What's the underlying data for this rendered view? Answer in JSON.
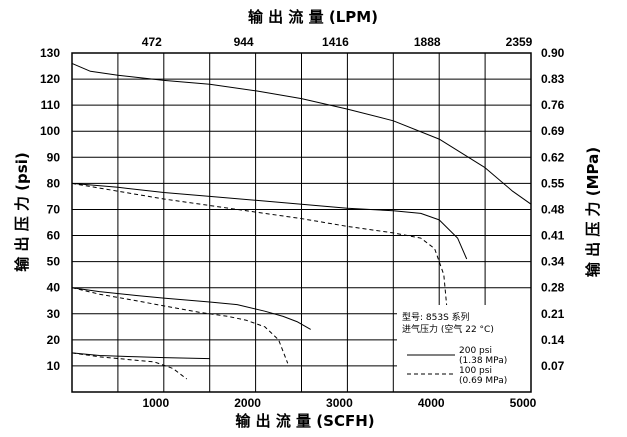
{
  "chart_data": {
    "type": "line",
    "title_top": "输 出 流 量 (LPM)",
    "xlabel": "输 出 流 量 (SCFH)",
    "ylabel_left": "输 出 压 力 (psi)",
    "ylabel_right": "输 出 压 力 (MPa)",
    "xlim": [
      0,
      5000
    ],
    "ylim": [
      0,
      130
    ],
    "grid": true,
    "x_ticks": [
      {
        "value": 1000,
        "label": "1000"
      },
      {
        "value": 2000,
        "label": "2000"
      },
      {
        "value": 3000,
        "label": "3000"
      },
      {
        "value": 4000,
        "label": "4000"
      },
      {
        "value": 5000,
        "label": "5000"
      }
    ],
    "top_ticks": [
      {
        "value": 1000,
        "label": "472"
      },
      {
        "value": 2000,
        "label": "944"
      },
      {
        "value": 3000,
        "label": "1416"
      },
      {
        "value": 4000,
        "label": "1888"
      },
      {
        "value": 5000,
        "label": "2359"
      }
    ],
    "y_ticks": [
      {
        "value": 10,
        "label": "10"
      },
      {
        "value": 20,
        "label": "20"
      },
      {
        "value": 30,
        "label": "30"
      },
      {
        "value": 40,
        "label": "40"
      },
      {
        "value": 50,
        "label": "50"
      },
      {
        "value": 60,
        "label": "60"
      },
      {
        "value": 70,
        "label": "70"
      },
      {
        "value": 80,
        "label": "80"
      },
      {
        "value": 90,
        "label": "90"
      },
      {
        "value": 100,
        "label": "100"
      },
      {
        "value": 110,
        "label": "110"
      },
      {
        "value": 120,
        "label": "120"
      },
      {
        "value": 130,
        "label": "130"
      }
    ],
    "right_ticks": [
      {
        "value": 10,
        "label": "0.07"
      },
      {
        "value": 20,
        "label": "0.14"
      },
      {
        "value": 30,
        "label": "0.21"
      },
      {
        "value": 40,
        "label": "0.28"
      },
      {
        "value": 50,
        "label": "0.34"
      },
      {
        "value": 60,
        "label": "0.41"
      },
      {
        "value": 70,
        "label": "0.48"
      },
      {
        "value": 80,
        "label": "0.55"
      },
      {
        "value": 90,
        "label": "0.62"
      },
      {
        "value": 100,
        "label": "0.69"
      },
      {
        "value": 110,
        "label": "0.76"
      },
      {
        "value": 120,
        "label": "0.83"
      },
      {
        "value": 130,
        "label": "0.90"
      }
    ],
    "legend": {
      "placement": "bottom-right",
      "heading1": "型号: 853S 系列",
      "heading2": "进气压力 (空气 22 °C)",
      "entries": [
        {
          "style": "solid",
          "label1": "200 psi",
          "label2": "(1.38 MPa)"
        },
        {
          "style": "dashed",
          "label1": "100 psi",
          "label2": "(0.69 MPa)"
        }
      ]
    },
    "series": [
      {
        "style": "solid",
        "x": [
          0,
          200,
          500,
          1000,
          1500,
          2000,
          2500,
          3000,
          3500,
          4000,
          4500,
          4800,
          5000
        ],
        "y": [
          126,
          123,
          121.5,
          119.5,
          118,
          115.5,
          112.5,
          108.5,
          104,
          97,
          86,
          77,
          72
        ]
      },
      {
        "style": "solid",
        "x": [
          0,
          500,
          1000,
          1500,
          2000,
          2500,
          3000,
          3500,
          3800,
          4000,
          4200,
          4300
        ],
        "y": [
          80,
          78.5,
          76.5,
          75,
          73.5,
          72,
          70.5,
          69.5,
          68.5,
          66,
          59,
          51
        ]
      },
      {
        "style": "dashed",
        "x": [
          0,
          500,
          1000,
          1500,
          2000,
          2500,
          3000,
          3500,
          3800,
          3950,
          4050,
          4100
        ],
        "y": [
          80,
          77,
          74,
          71.5,
          69,
          66.5,
          63.5,
          61,
          59,
          55,
          45,
          26
        ]
      },
      {
        "style": "solid",
        "x": [
          0,
          300,
          700,
          1000,
          1500,
          1800,
          2100,
          2300,
          2450,
          2600
        ],
        "y": [
          40,
          38.5,
          37,
          36,
          34.5,
          33.5,
          31,
          29,
          27,
          24
        ]
      },
      {
        "style": "dashed",
        "x": [
          0,
          300,
          700,
          1000,
          1400,
          1700,
          1900,
          2100,
          2250,
          2350
        ],
        "y": [
          40,
          37.5,
          35,
          33,
          30.5,
          29,
          27.5,
          25,
          20,
          11
        ]
      },
      {
        "style": "solid",
        "x": [
          0,
          300,
          700,
          1000,
          1500
        ],
        "y": [
          15,
          14,
          13.5,
          13.2,
          12.8
        ]
      },
      {
        "style": "dashed",
        "x": [
          0,
          300,
          600,
          900,
          1100,
          1250
        ],
        "y": [
          15,
          13.5,
          12.5,
          11.5,
          9,
          5
        ]
      }
    ]
  }
}
